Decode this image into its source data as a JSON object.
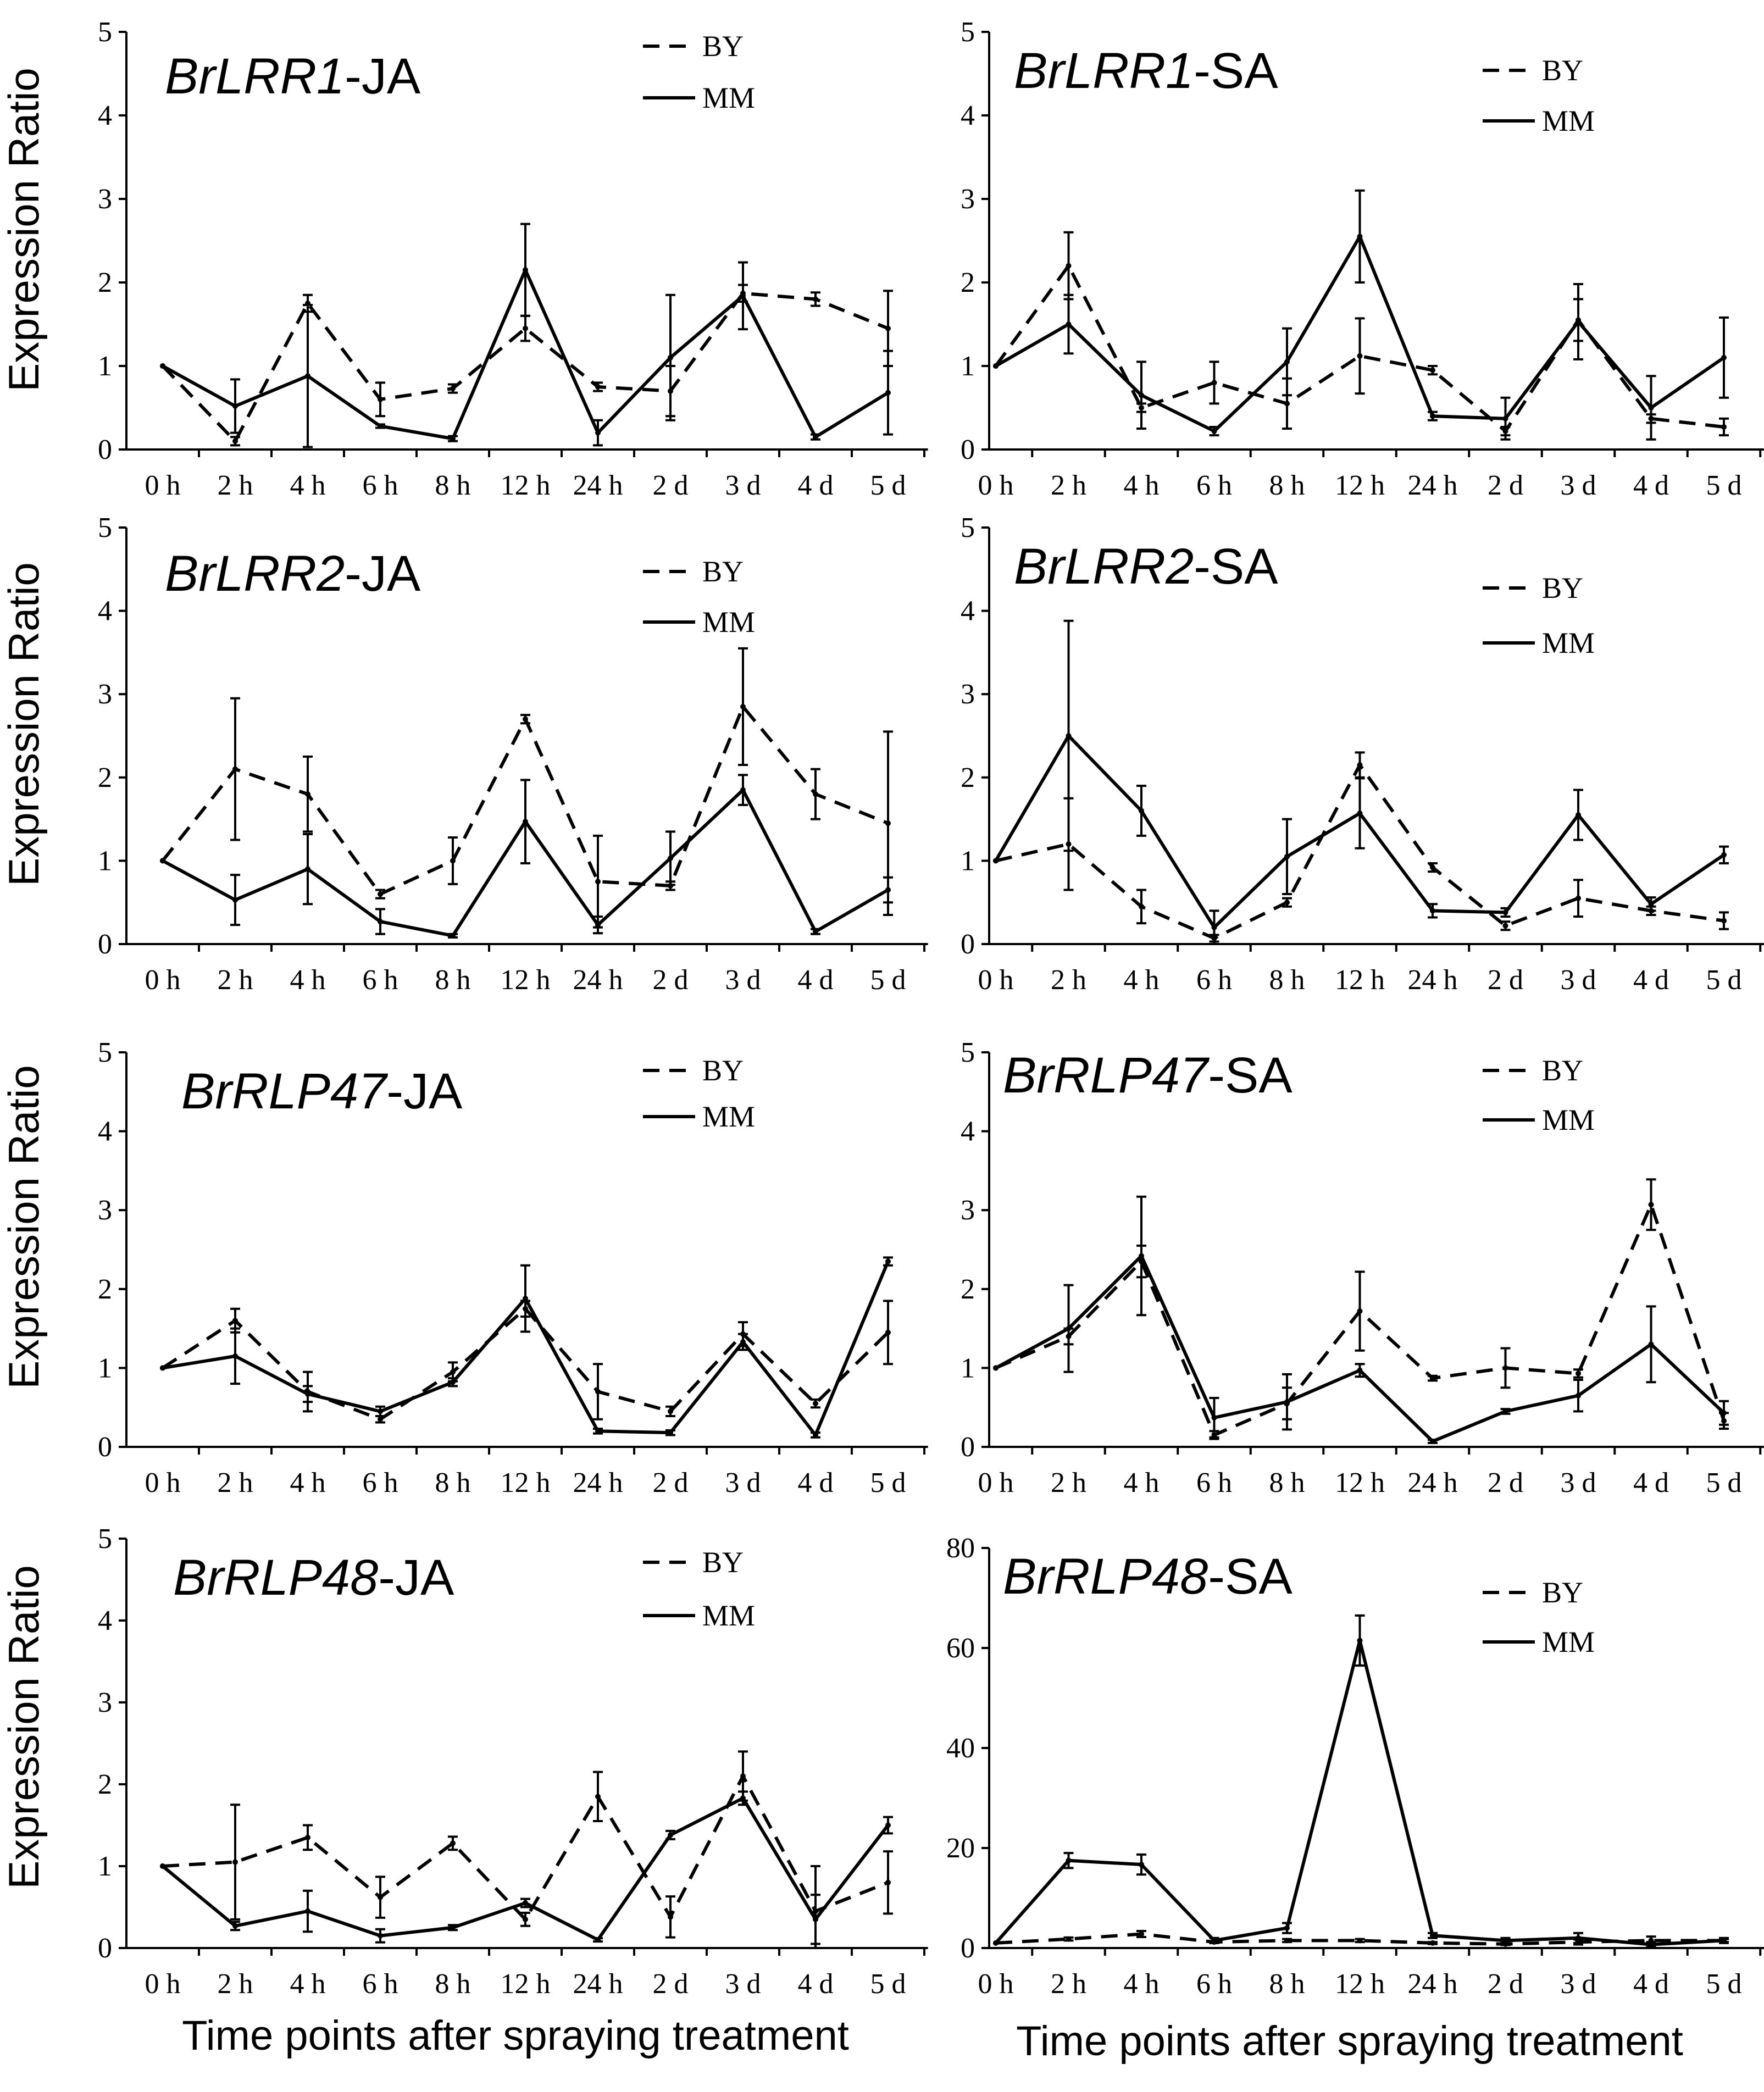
{
  "figure": {
    "y_axis_label": "Expression Ratio",
    "x_axis_label": "Time points after spraying treatment",
    "legend_labels": [
      "BY",
      "MM"
    ]
  },
  "chart_data": [
    {
      "type": "line",
      "title_italic": "BrLRR1",
      "title_suffix": "-JA",
      "categories": [
        "0 h",
        "2 h",
        "4 h",
        "6 h",
        "8 h",
        "12 h",
        "24 h",
        "2 d",
        "3 d",
        "4 d",
        "5 d"
      ],
      "ylim": [
        0,
        5
      ],
      "yticks": [
        0,
        1,
        2,
        3,
        4,
        5
      ],
      "series": [
        {
          "name": "BY",
          "style": "dashed",
          "values": [
            1.0,
            0.1,
            1.75,
            0.6,
            0.73,
            1.45,
            0.75,
            0.7,
            1.87,
            1.8,
            1.45
          ],
          "errors": [
            0,
            0.05,
            0.1,
            0.2,
            0.05,
            0.15,
            0.05,
            0.3,
            0.1,
            0.08,
            0.45
          ]
        },
        {
          "name": "MM",
          "style": "solid",
          "values": [
            1.0,
            0.52,
            0.88,
            0.28,
            0.13,
            2.15,
            0.2,
            1.1,
            1.84,
            0.15,
            0.68
          ],
          "errors": [
            0,
            0.32,
            0.85,
            0.02,
            0.03,
            0.55,
            0.15,
            0.75,
            0.4,
            0.03,
            0.5
          ]
        }
      ]
    },
    {
      "type": "line",
      "title_italic": "BrLRR1",
      "title_suffix": "-SA",
      "categories": [
        "0 h",
        "2 h",
        "4 h",
        "6 h",
        "8 h",
        "12 h",
        "24 h",
        "2 d",
        "3 d",
        "4 d",
        "5 d"
      ],
      "ylim": [
        0,
        5
      ],
      "yticks": [
        0,
        1,
        2,
        3,
        4,
        5
      ],
      "series": [
        {
          "name": "BY",
          "style": "dashed",
          "values": [
            1.0,
            2.2,
            0.5,
            0.8,
            0.55,
            1.12,
            0.95,
            0.22,
            1.55,
            0.37,
            0.27
          ],
          "errors": [
            0,
            0.4,
            0.05,
            0.25,
            0.3,
            0.45,
            0.05,
            0.05,
            0.25,
            0.05,
            0.1
          ]
        },
        {
          "name": "MM",
          "style": "solid",
          "values": [
            1.0,
            1.5,
            0.65,
            0.22,
            1.05,
            2.55,
            0.4,
            0.37,
            1.53,
            0.5,
            1.1
          ],
          "errors": [
            0,
            0.35,
            0.4,
            0.05,
            0.4,
            0.55,
            0.05,
            0.25,
            0.45,
            0.38,
            0.48
          ]
        }
      ]
    },
    {
      "type": "line",
      "title_italic": "BrLRR2",
      "title_suffix": "-JA",
      "categories": [
        "0 h",
        "2 h",
        "4 h",
        "6 h",
        "8 h",
        "12 h",
        "24 h",
        "2 d",
        "3 d",
        "4 d",
        "5 d"
      ],
      "ylim": [
        0,
        5
      ],
      "yticks": [
        0,
        1,
        2,
        3,
        4,
        5
      ],
      "series": [
        {
          "name": "BY",
          "style": "dashed",
          "values": [
            1.0,
            2.1,
            1.8,
            0.6,
            1.0,
            2.7,
            0.75,
            0.7,
            2.85,
            1.8,
            1.45
          ],
          "errors": [
            0,
            0.85,
            0.45,
            0.05,
            0.28,
            0.05,
            0.55,
            0.05,
            0.7,
            0.3,
            1.1
          ]
        },
        {
          "name": "MM",
          "style": "solid",
          "values": [
            1.0,
            0.53,
            0.9,
            0.27,
            0.1,
            1.47,
            0.23,
            1.03,
            1.85,
            0.15,
            0.65
          ],
          "errors": [
            0,
            0.3,
            0.42,
            0.15,
            0.02,
            0.5,
            0.1,
            0.32,
            0.18,
            0.03,
            0.15
          ]
        }
      ]
    },
    {
      "type": "line",
      "title_italic": "BrLRR2",
      "title_suffix": "-SA",
      "categories": [
        "0 h",
        "2 h",
        "4 h",
        "6 h",
        "8 h",
        "12 h",
        "24 h",
        "2 d",
        "3 d",
        "4 d",
        "5 d"
      ],
      "ylim": [
        0,
        5
      ],
      "yticks": [
        0,
        1,
        2,
        3,
        4,
        5
      ],
      "series": [
        {
          "name": "BY",
          "style": "dashed",
          "values": [
            1.0,
            1.2,
            0.45,
            0.07,
            0.5,
            2.15,
            0.92,
            0.22,
            0.55,
            0.4,
            0.28
          ],
          "errors": [
            0,
            0.55,
            0.2,
            0.04,
            0.05,
            0.15,
            0.05,
            0.05,
            0.22,
            0.05,
            0.1
          ]
        },
        {
          "name": "MM",
          "style": "solid",
          "values": [
            1.0,
            2.5,
            1.6,
            0.2,
            1.05,
            1.57,
            0.4,
            0.38,
            1.55,
            0.48,
            1.07
          ],
          "errors": [
            0,
            1.38,
            0.3,
            0.2,
            0.45,
            0.42,
            0.08,
            0.05,
            0.3,
            0.08,
            0.1
          ]
        }
      ]
    },
    {
      "type": "line",
      "title_italic": "BrRLP47",
      "title_suffix": "-JA",
      "categories": [
        "0 h",
        "2 h",
        "4 h",
        "6 h",
        "8 h",
        "12 h",
        "24 h",
        "2 d",
        "3 d",
        "4 d",
        "5 d"
      ],
      "ylim": [
        0,
        5
      ],
      "yticks": [
        0,
        1,
        2,
        3,
        4,
        5
      ],
      "series": [
        {
          "name": "BY",
          "style": "dashed",
          "values": [
            1.0,
            1.6,
            0.7,
            0.35,
            0.95,
            1.75,
            0.7,
            0.45,
            1.43,
            0.55,
            1.45
          ],
          "errors": [
            0,
            0.15,
            0.25,
            0.04,
            0.12,
            0.1,
            0.35,
            0.06,
            0.15,
            0.05,
            0.4
          ]
        },
        {
          "name": "MM",
          "style": "solid",
          "values": [
            1.0,
            1.15,
            0.67,
            0.45,
            0.82,
            1.88,
            0.2,
            0.18,
            1.33,
            0.15,
            2.35
          ],
          "errors": [
            0,
            0.35,
            0.1,
            0.06,
            0.05,
            0.42,
            0.03,
            0.03,
            0.1,
            0.03,
            0.05
          ]
        }
      ]
    },
    {
      "type": "line",
      "title_italic": "BrRLP47",
      "title_suffix": "-SA",
      "categories": [
        "0 h",
        "2 h",
        "4 h",
        "6 h",
        "8 h",
        "12 h",
        "24 h",
        "2 d",
        "3 d",
        "4 d",
        "5 d"
      ],
      "ylim": [
        0,
        5
      ],
      "yticks": [
        0,
        1,
        2,
        3,
        4,
        5
      ],
      "series": [
        {
          "name": "BY",
          "style": "dashed",
          "values": [
            1.0,
            1.4,
            2.35,
            0.15,
            0.55,
            1.72,
            0.87,
            1.0,
            0.93,
            3.07,
            0.33
          ],
          "errors": [
            0,
            0.1,
            0.2,
            0.05,
            0.2,
            0.5,
            0.03,
            0.25,
            0.05,
            0.32,
            0.1
          ]
        },
        {
          "name": "MM",
          "style": "solid",
          "values": [
            1.0,
            1.5,
            2.42,
            0.37,
            0.57,
            0.97,
            0.07,
            0.45,
            0.65,
            1.3,
            0.43
          ],
          "errors": [
            0,
            0.55,
            0.75,
            0.25,
            0.35,
            0.08,
            0.02,
            0.03,
            0.2,
            0.48,
            0.15
          ]
        }
      ]
    },
    {
      "type": "line",
      "title_italic": "BrRLP48",
      "title_suffix": "-JA",
      "categories": [
        "0 h",
        "2 h",
        "4 h",
        "6 h",
        "8 h",
        "12 h",
        "24 h",
        "2 d",
        "3 d",
        "4 d",
        "5 d"
      ],
      "ylim": [
        0,
        5
      ],
      "yticks": [
        0,
        1,
        2,
        3,
        4,
        5
      ],
      "series": [
        {
          "name": "BY",
          "style": "dashed",
          "values": [
            1.0,
            1.05,
            1.35,
            0.62,
            1.28,
            0.35,
            1.85,
            0.38,
            2.1,
            0.45,
            0.8
          ],
          "errors": [
            0,
            0.7,
            0.15,
            0.25,
            0.08,
            0.08,
            0.3,
            0.25,
            0.3,
            0.55,
            0.38
          ]
        },
        {
          "name": "MM",
          "style": "solid",
          "values": [
            1.0,
            0.27,
            0.45,
            0.15,
            0.25,
            0.55,
            0.1,
            1.38,
            1.83,
            0.35,
            1.5
          ],
          "errors": [
            0,
            0.05,
            0.25,
            0.08,
            0.03,
            0.05,
            0.02,
            0.05,
            0.08,
            0.3,
            0.1
          ]
        }
      ]
    },
    {
      "type": "line",
      "title_italic": "BrRLP48",
      "title_suffix": "-SA",
      "categories": [
        "0 h",
        "2 h",
        "4 h",
        "6 h",
        "8 h",
        "12 h",
        "24 h",
        "2 d",
        "3 d",
        "4 d",
        "5 d"
      ],
      "ylim": [
        0,
        80
      ],
      "yticks": [
        0,
        20,
        40,
        60,
        80
      ],
      "series": [
        {
          "name": "BY",
          "style": "dashed",
          "values": [
            1.0,
            1.8,
            2.8,
            1.2,
            1.5,
            1.5,
            1.0,
            0.8,
            1.2,
            1.5,
            1.5
          ],
          "errors": [
            0,
            0.3,
            0.6,
            0.2,
            0.3,
            0.3,
            0.2,
            0.2,
            0.5,
            0.8,
            0.3
          ]
        },
        {
          "name": "MM",
          "style": "solid",
          "values": [
            1.0,
            17.5,
            16.7,
            1.5,
            4.0,
            61.5,
            2.5,
            1.5,
            2.0,
            0.7,
            1.5
          ],
          "errors": [
            0,
            1.5,
            2.0,
            0.5,
            1.0,
            5.0,
            0.5,
            0.5,
            1.0,
            0.5,
            0.5
          ]
        }
      ]
    }
  ]
}
